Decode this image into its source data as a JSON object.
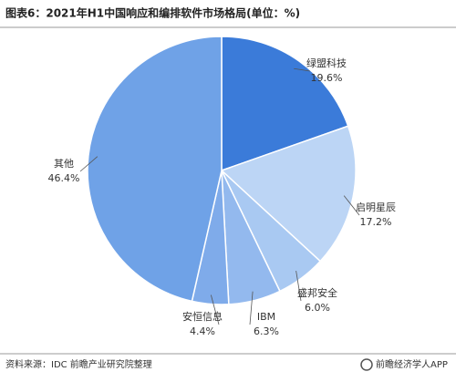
{
  "chart_data": {
    "type": "pie",
    "title": "图表6：2021年H1中国响应和编排软件市场格局(单位：%)",
    "categories": [
      "绿盟科技",
      "启明星辰",
      "盛邦安全",
      "IBM",
      "安恒信息",
      "其他"
    ],
    "values": [
      19.6,
      17.2,
      6.0,
      6.3,
      4.4,
      46.4
    ],
    "value_labels": [
      "19.6%",
      "17.2%",
      "6.0%",
      "6.3%",
      "4.4%",
      "46.4%"
    ],
    "colors": [
      "#3b7bd9",
      "#bcd5f5",
      "#a9c9f2",
      "#93b9ee",
      "#7fabea",
      "#6fa2e7"
    ],
    "source": "资料来源：IDC 前瞻产业研究院整理",
    "brand": "前瞻经济学人APP"
  }
}
